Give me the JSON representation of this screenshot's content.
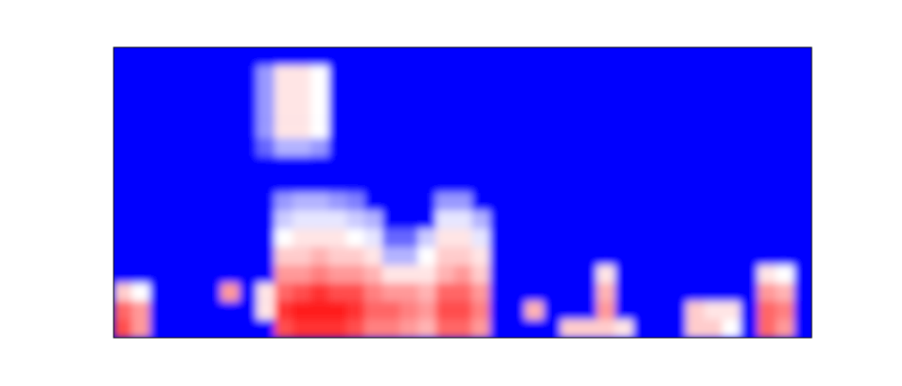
{
  "chart_data": {
    "type": "heatmap",
    "tick_labels": false,
    "zlim": [
      0,
      1
    ],
    "colors": [
      "#0000ff",
      "#ffffff",
      "#ff0000"
    ],
    "cells": [
      [
        0,
        0,
        0,
        0,
        0,
        0,
        0,
        0,
        0,
        0,
        0,
        0,
        0,
        0,
        0,
        0,
        0,
        0,
        0,
        0,
        0,
        0,
        0,
        0,
        0,
        0,
        0,
        0,
        0,
        0,
        0,
        0,
        0,
        0,
        0,
        0,
        0,
        0,
        0
      ],
      [
        0,
        0,
        0,
        0,
        0,
        0,
        0,
        0,
        0.3,
        0.55,
        0.55,
        0.5,
        0,
        0,
        0,
        0,
        0,
        0,
        0,
        0,
        0,
        0,
        0,
        0,
        0,
        0,
        0,
        0,
        0,
        0,
        0,
        0,
        0,
        0,
        0,
        0,
        0,
        0,
        0
      ],
      [
        0,
        0,
        0,
        0,
        0,
        0,
        0,
        0,
        0.3,
        0.55,
        0.55,
        0.5,
        0,
        0,
        0,
        0,
        0,
        0,
        0,
        0,
        0,
        0,
        0,
        0,
        0,
        0,
        0,
        0,
        0,
        0,
        0,
        0,
        0,
        0,
        0,
        0,
        0,
        0,
        0
      ],
      [
        0,
        0,
        0,
        0,
        0,
        0,
        0,
        0,
        0.3,
        0.55,
        0.55,
        0.5,
        0,
        0,
        0,
        0,
        0,
        0,
        0,
        0,
        0,
        0,
        0,
        0,
        0,
        0,
        0,
        0,
        0,
        0,
        0,
        0,
        0,
        0,
        0,
        0,
        0,
        0,
        0
      ],
      [
        0,
        0,
        0,
        0,
        0,
        0,
        0,
        0,
        0.3,
        0.55,
        0.55,
        0.5,
        0,
        0,
        0,
        0,
        0,
        0,
        0,
        0,
        0,
        0,
        0,
        0,
        0,
        0,
        0,
        0,
        0,
        0,
        0,
        0,
        0,
        0,
        0,
        0,
        0,
        0,
        0
      ],
      [
        0,
        0,
        0,
        0,
        0,
        0,
        0,
        0,
        0.2,
        0.35,
        0.35,
        0.3,
        0,
        0,
        0,
        0,
        0,
        0,
        0,
        0,
        0,
        0,
        0,
        0,
        0,
        0,
        0,
        0,
        0,
        0,
        0,
        0,
        0,
        0,
        0,
        0,
        0,
        0,
        0
      ],
      [
        0,
        0,
        0,
        0,
        0,
        0,
        0,
        0,
        0,
        0,
        0,
        0,
        0,
        0,
        0,
        0,
        0,
        0,
        0,
        0,
        0,
        0,
        0,
        0,
        0,
        0,
        0,
        0,
        0,
        0,
        0,
        0,
        0,
        0,
        0,
        0,
        0,
        0,
        0
      ],
      [
        0,
        0,
        0,
        0,
        0,
        0,
        0,
        0,
        0,
        0,
        0,
        0,
        0,
        0,
        0,
        0,
        0,
        0,
        0,
        0,
        0,
        0,
        0,
        0,
        0,
        0,
        0,
        0,
        0,
        0,
        0,
        0,
        0,
        0,
        0,
        0,
        0,
        0,
        0
      ],
      [
        0,
        0,
        0,
        0,
        0,
        0,
        0,
        0,
        0,
        0.3,
        0.35,
        0.35,
        0.3,
        0.25,
        0,
        0,
        0,
        0,
        0.3,
        0.3,
        0,
        0,
        0,
        0,
        0,
        0,
        0,
        0,
        0,
        0,
        0,
        0,
        0,
        0,
        0,
        0,
        0,
        0,
        0
      ],
      [
        0,
        0,
        0,
        0,
        0,
        0,
        0,
        0,
        0,
        0.4,
        0.45,
        0.45,
        0.45,
        0.4,
        0.35,
        0,
        0,
        0,
        0.45,
        0.45,
        0.35,
        0,
        0,
        0,
        0,
        0,
        0,
        0,
        0,
        0,
        0,
        0,
        0,
        0,
        0,
        0,
        0,
        0,
        0
      ],
      [
        0,
        0,
        0,
        0,
        0,
        0,
        0,
        0,
        0,
        0.5,
        0.55,
        0.55,
        0.55,
        0.5,
        0.45,
        0.2,
        0.2,
        0.4,
        0.55,
        0.55,
        0.45,
        0,
        0,
        0,
        0,
        0,
        0,
        0,
        0,
        0,
        0,
        0,
        0,
        0,
        0,
        0,
        0,
        0,
        0
      ],
      [
        0,
        0,
        0,
        0,
        0,
        0,
        0,
        0,
        0,
        0.6,
        0.6,
        0.65,
        0.6,
        0.6,
        0.55,
        0.35,
        0.35,
        0.5,
        0.6,
        0.6,
        0.55,
        0,
        0,
        0,
        0,
        0,
        0,
        0,
        0,
        0,
        0,
        0,
        0,
        0,
        0,
        0,
        0,
        0,
        0
      ],
      [
        0,
        0,
        0,
        0,
        0,
        0,
        0,
        0,
        0,
        0.7,
        0.7,
        0.75,
        0.7,
        0.7,
        0.65,
        0.55,
        0.55,
        0.55,
        0.65,
        0.7,
        0.6,
        0,
        0,
        0,
        0,
        0,
        0,
        0.55,
        0,
        0,
        0,
        0,
        0,
        0,
        0,
        0,
        0.55,
        0.5,
        0
      ],
      [
        0.6,
        0.5,
        0,
        0,
        0,
        0,
        0.7,
        0,
        0.55,
        0.8,
        0.85,
        0.9,
        0.85,
        0.85,
        0.75,
        0.7,
        0.7,
        0.65,
        0.8,
        0.8,
        0.7,
        0,
        0,
        0,
        0,
        0,
        0,
        0.65,
        0,
        0,
        0,
        0,
        0,
        0,
        0,
        0,
        0.7,
        0.65,
        0
      ],
      [
        0.8,
        0.7,
        0,
        0,
        0,
        0,
        0,
        0,
        0.55,
        0.9,
        0.95,
        0.95,
        0.95,
        0.9,
        0.8,
        0.8,
        0.75,
        0.7,
        0.85,
        0.85,
        0.75,
        0,
        0,
        0.65,
        0,
        0,
        0,
        0.7,
        0,
        0,
        0,
        0,
        0.6,
        0.55,
        0.55,
        0,
        0.8,
        0.75,
        0
      ],
      [
        0.85,
        0.7,
        0,
        0,
        0,
        0,
        0,
        0,
        0,
        0.85,
        0.9,
        0.9,
        0.9,
        0.85,
        0.75,
        0.75,
        0.7,
        0.65,
        0.8,
        0.8,
        0.7,
        0,
        0,
        0,
        0,
        0.6,
        0.6,
        0.6,
        0.55,
        0,
        0,
        0,
        0.6,
        0.6,
        0.5,
        0,
        0.8,
        0.7,
        0
      ]
    ]
  }
}
